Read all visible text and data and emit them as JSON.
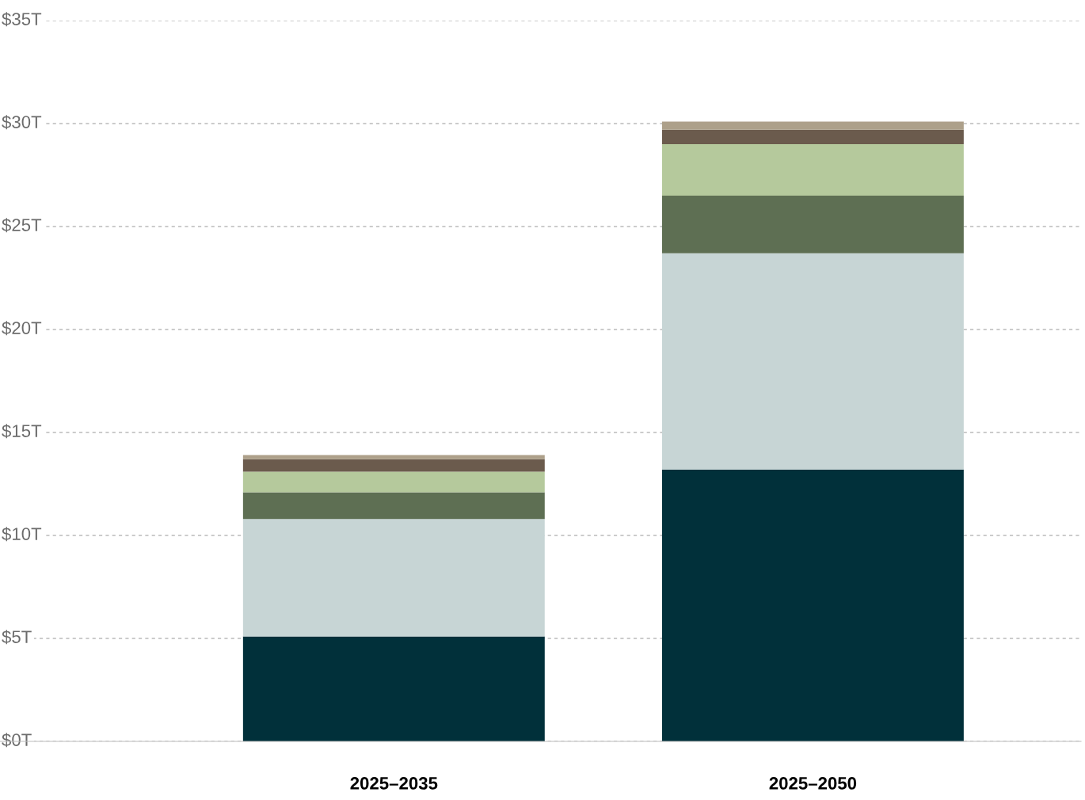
{
  "chart_data": {
    "type": "bar",
    "stacked": true,
    "categories": [
      "2025–2035",
      "2025–2050"
    ],
    "series": [
      {
        "color": "#01303a",
        "values": [
          5.1,
          13.2
        ]
      },
      {
        "color": "#c7d5d5",
        "values": [
          5.7,
          10.5
        ]
      },
      {
        "color": "#5e6f53",
        "values": [
          1.3,
          2.8
        ]
      },
      {
        "color": "#b5c99c",
        "values": [
          1.0,
          2.5
        ]
      },
      {
        "color": "#6b5b4d",
        "values": [
          0.6,
          0.7
        ]
      },
      {
        "color": "#ada08a",
        "values": [
          0.2,
          0.4
        ]
      }
    ],
    "ylim": [
      0,
      35
    ],
    "yticks": [
      {
        "value": 0,
        "label": "$0T"
      },
      {
        "value": 5,
        "label": "$5T"
      },
      {
        "value": 10,
        "label": "$10T"
      },
      {
        "value": 15,
        "label": "$15T"
      },
      {
        "value": 20,
        "label": "$20T"
      },
      {
        "value": 25,
        "label": "$25T"
      },
      {
        "value": 30,
        "label": "$30T"
      },
      {
        "value": 35,
        "label": "$35T"
      }
    ],
    "grid": "y"
  }
}
